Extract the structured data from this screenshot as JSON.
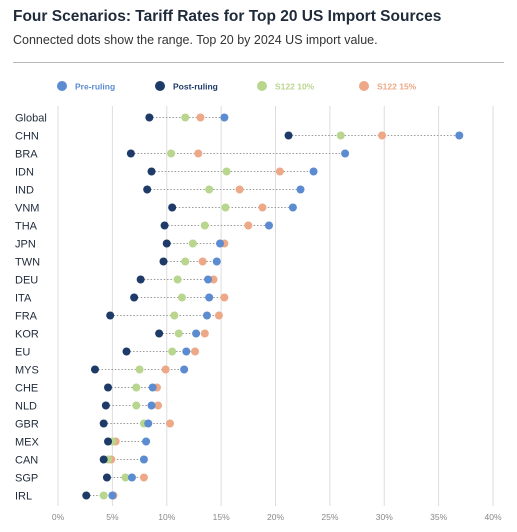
{
  "title": "Four Scenarios: Tariff Rates for Top 20 US Import Sources",
  "subtitle": "Connected dots show the range. Top 20 by 2024 US import value.",
  "colors": {
    "pre": "#5b8bd0",
    "post": "#1d3a68",
    "s10": "#b8d68e",
    "s15": "#eda887",
    "grid": "#dddddd",
    "connector": "#9a9a9a"
  },
  "chart_data": {
    "type": "scatter",
    "subtype": "dot-range",
    "legend_position": "top",
    "xlim": [
      0,
      40
    ],
    "x_ticks": [
      0,
      5,
      10,
      15,
      20,
      25,
      30,
      35,
      40
    ],
    "x_tick_labels": [
      "0%",
      "5%",
      "10%",
      "15%",
      "20%",
      "25%",
      "30%",
      "35%",
      "40%"
    ],
    "grid": true,
    "categories": [
      "Global",
      "CHN",
      "BRA",
      "IDN",
      "IND",
      "VNM",
      "THA",
      "JPN",
      "TWN",
      "DEU",
      "ITA",
      "FRA",
      "KOR",
      "EU",
      "MYS",
      "CHE",
      "NLD",
      "GBR",
      "MEX",
      "CAN",
      "SGP",
      "IRL"
    ],
    "series": [
      {
        "name": "Pre-ruling",
        "key": "pre",
        "values": [
          15.3,
          36.9,
          26.4,
          23.5,
          22.3,
          21.6,
          19.4,
          14.9,
          14.6,
          13.8,
          13.9,
          13.7,
          12.7,
          11.8,
          11.6,
          8.7,
          8.6,
          8.3,
          8.1,
          7.9,
          6.8,
          5.0
        ]
      },
      {
        "name": "Post-ruling",
        "key": "post",
        "values": [
          8.4,
          21.2,
          6.7,
          8.6,
          8.2,
          10.5,
          9.8,
          10.0,
          9.7,
          7.6,
          7.0,
          4.8,
          9.3,
          6.3,
          3.4,
          4.6,
          4.4,
          4.2,
          4.6,
          4.2,
          4.5,
          2.6
        ]
      },
      {
        "name": "S122 10%",
        "key": "s10",
        "values": [
          11.7,
          26.0,
          10.4,
          15.5,
          13.9,
          15.4,
          13.5,
          12.4,
          11.7,
          11.0,
          11.4,
          10.7,
          11.1,
          10.5,
          7.5,
          7.2,
          7.2,
          7.9,
          5.0,
          4.6,
          6.2,
          4.2
        ]
      },
      {
        "name": "S122 15%",
        "key": "s15",
        "values": [
          13.1,
          29.8,
          12.9,
          20.4,
          16.7,
          18.8,
          17.5,
          15.3,
          13.3,
          14.3,
          15.3,
          14.8,
          13.5,
          12.6,
          9.9,
          9.1,
          9.2,
          10.3,
          5.3,
          4.9,
          7.9,
          5.1
        ]
      }
    ]
  }
}
